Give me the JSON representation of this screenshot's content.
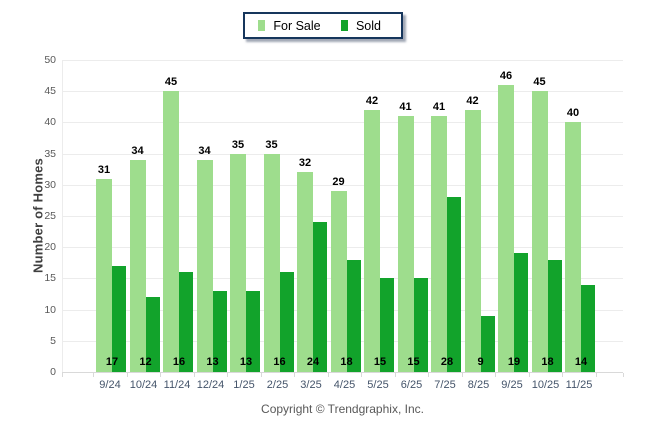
{
  "legend": {
    "for_sale_label": "For Sale",
    "sold_label": "Sold"
  },
  "footer": {
    "copyright": "Copyright © Trendgraphix, Inc."
  },
  "colors": {
    "for_sale": "#9edd8d",
    "sold": "#12a32b",
    "grid": "#ececec",
    "axis": "#d9d9d9",
    "y_tick_label": "#595959",
    "x_label": "#44546a",
    "value_label": "#000000",
    "legend_border": "#16365c",
    "footer_text": "#595959"
  },
  "chart_data": {
    "type": "bar",
    "title": "",
    "categories": [
      "9/24",
      "10/24",
      "11/24",
      "12/24",
      "1/25",
      "2/25",
      "3/25",
      "4/25",
      "5/25",
      "6/25",
      "7/25",
      "8/25",
      "9/25",
      "10/25",
      "11/25"
    ],
    "series": [
      {
        "name": "For Sale",
        "color": "#9edd8d",
        "values": [
          31,
          34,
          45,
          34,
          35,
          35,
          32,
          29,
          42,
          41,
          41,
          42,
          46,
          45,
          40
        ]
      },
      {
        "name": "Sold",
        "color": "#12a32b",
        "values": [
          17,
          12,
          16,
          13,
          13,
          16,
          24,
          18,
          15,
          15,
          28,
          9,
          19,
          18,
          14
        ]
      }
    ],
    "xlabel": "",
    "ylabel": "Number of Homes",
    "ylim": [
      0,
      50
    ],
    "y_tick_step": 5,
    "grid": true,
    "legend_position": "top-center",
    "value_labels": "for_sale_above_bar_and_sold_inside_bottom"
  }
}
